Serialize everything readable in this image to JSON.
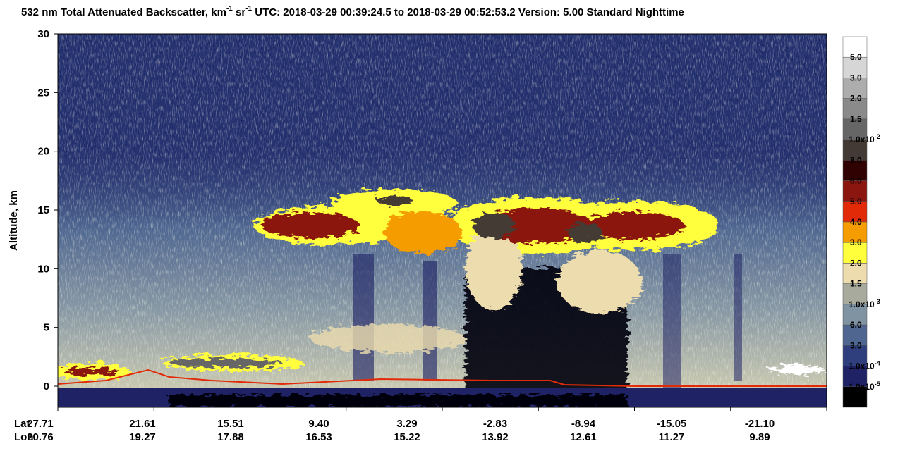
{
  "chart_data": {
    "type": "curtain",
    "title": [
      {
        "text": "532 nm Total Attenuated Backscatter, km"
      },
      {
        "sup": "-1"
      },
      {
        "text": " sr"
      },
      {
        "sup": "-1"
      },
      {
        "text": "    UTC:  2018-03-29 00:39:24.5  to  2018-03-29 00:52:53.2    Version: 5.00  Standard  Nighttime"
      }
    ],
    "ylabel": "Altitude, km",
    "ylim": [
      -1.8,
      30
    ],
    "yticks": [
      0,
      5,
      10,
      15,
      20,
      25,
      30
    ],
    "x_row_labels": [
      "Lat",
      "Lon"
    ],
    "lat": [
      "27.71",
      "21.61",
      "15.51",
      "9.40",
      "3.29",
      "-2.83",
      "-8.94",
      "-15.05",
      "-21.10"
    ],
    "lon": [
      "20.76",
      "19.27",
      "17.88",
      "16.53",
      "15.22",
      "13.92",
      "12.61",
      "11.27",
      "9.89"
    ],
    "colorbar": {
      "colors": [
        "#ffffff",
        "#d6d6d6",
        "#adadad",
        "#8a8a8a",
        "#666666",
        "#443a35",
        "#300202",
        "#8b1610",
        "#e22a08",
        "#f59c00",
        "#ffff3c",
        "#ecdcae",
        "#a8aa9e",
        "#8093a2",
        "#4e6690",
        "#2f3f7d",
        "#1f2366",
        "#000000"
      ],
      "labels": [
        "5.0",
        "3.0",
        "2.0",
        "1.5",
        {
          "text": "1.0x10",
          "sup": "-2"
        },
        "8.0",
        "6.0",
        "5.0",
        "4.0",
        "3.0",
        "2.0",
        "1.5",
        {
          "text": "1.0x10",
          "sup": "-3"
        },
        "6.0",
        "3.0",
        {
          "text": "1.0x10",
          "sup": "-4"
        },
        {
          "text": "1.0x10",
          "sup": "-5"
        }
      ]
    }
  }
}
